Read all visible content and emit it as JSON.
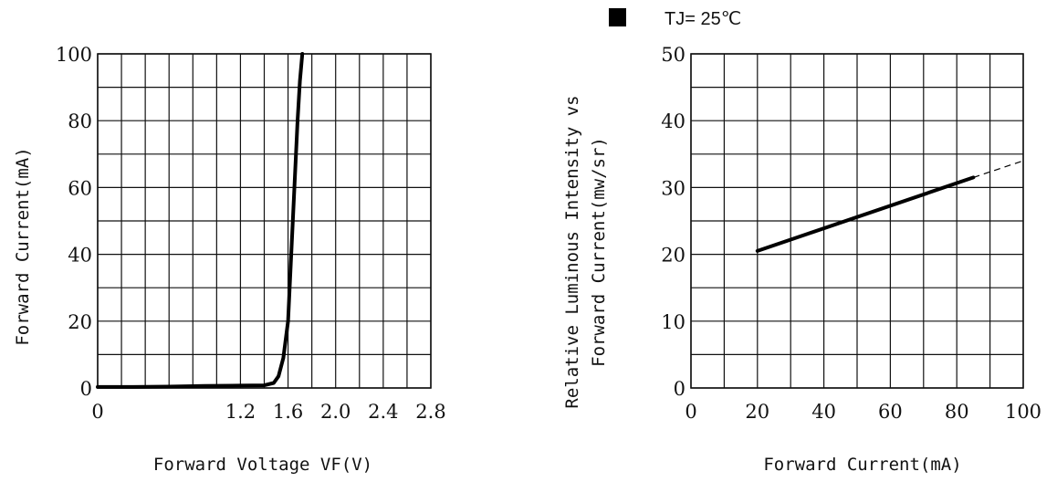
{
  "legend": {
    "label": "TJ= 25℃",
    "marker_color": "#000000"
  },
  "chart_data": [
    {
      "type": "line",
      "title": "",
      "xlabel": "Forward Voltage VF(V)",
      "ylabel": "Forward Current(mA)",
      "xlim": [
        0,
        2.8
      ],
      "ylim": [
        0,
        100
      ],
      "grid": true,
      "x_ticks": [
        0,
        1.2,
        1.6,
        2.0,
        2.4,
        2.8
      ],
      "x_tick_labels": [
        "0",
        "1.2",
        "1.6",
        "2.0",
        "2.4",
        "2.8"
      ],
      "y_ticks": [
        0,
        20,
        40,
        60,
        80,
        100
      ],
      "y_tick_labels": [
        "0",
        "20",
        "40",
        "60",
        "80",
        "100"
      ],
      "x_grid_step": 0.2,
      "y_grid_step": 10,
      "series": [
        {
          "x": [
            0,
            0.3,
            0.6,
            0.9,
            1.2,
            1.4,
            1.48,
            1.52,
            1.56,
            1.6,
            1.62,
            1.64,
            1.66,
            1.68,
            1.7,
            1.72
          ],
          "y": [
            0.3,
            0.3,
            0.4,
            0.6,
            0.7,
            0.8,
            1.5,
            3.5,
            9,
            20,
            35,
            50,
            65,
            80,
            92,
            100
          ]
        }
      ]
    },
    {
      "type": "line",
      "title": "",
      "xlabel": "Forward Current(mA)",
      "ylabel": "Relative Luminous Intensity vs Forward Current(mw/sr)",
      "ylabel_lines": [
        "Relative Luminous Intensity vs",
        "Forward Current(mw/sr)"
      ],
      "xlim": [
        0,
        100
      ],
      "ylim": [
        0,
        50
      ],
      "grid": true,
      "x_ticks": [
        0,
        20,
        40,
        60,
        80,
        100
      ],
      "x_tick_labels": [
        "0",
        "20",
        "40",
        "60",
        "80",
        "100"
      ],
      "y_ticks": [
        0,
        10,
        20,
        30,
        40,
        50
      ],
      "y_tick_labels": [
        "0",
        "10",
        "20",
        "30",
        "40",
        "50"
      ],
      "x_grid_step": 10,
      "y_grid_step": 5,
      "series": [
        {
          "style": "solid",
          "x": [
            20,
            85
          ],
          "y": [
            20.5,
            31.5
          ]
        },
        {
          "style": "dashed",
          "x": [
            85,
            100
          ],
          "y": [
            31.5,
            34
          ]
        }
      ]
    }
  ]
}
